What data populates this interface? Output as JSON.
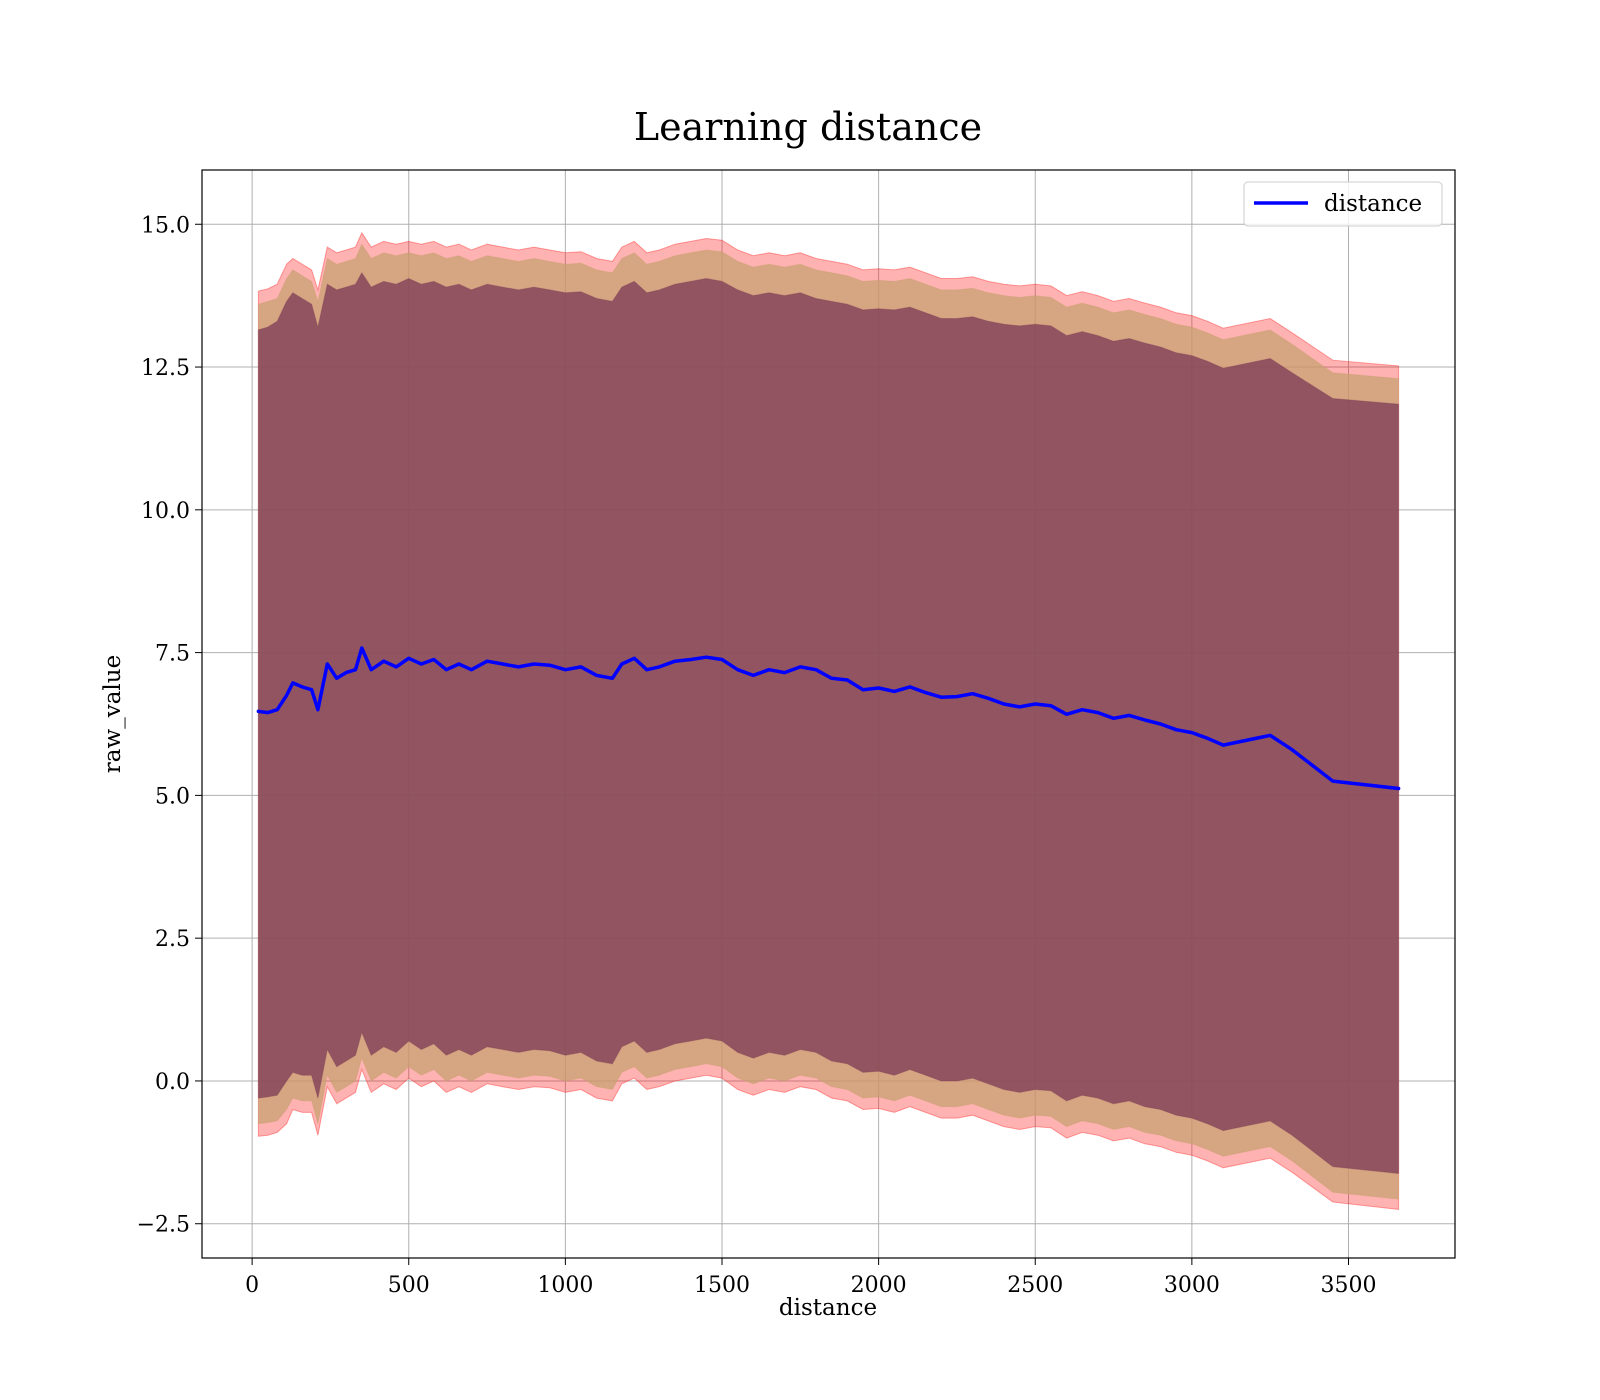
{
  "chart_data": {
    "type": "line",
    "title": "Learning distance",
    "xlabel": "distance",
    "ylabel": "raw_value",
    "xlim": [
      -160,
      3840
    ],
    "ylim": [
      -3.1,
      15.95
    ],
    "x_ticks": [
      0,
      500,
      1000,
      1500,
      2000,
      2500,
      3000,
      3500
    ],
    "x_tick_labels": [
      "0",
      "500",
      "1000",
      "1500",
      "2000",
      "2500",
      "3000",
      "3500"
    ],
    "y_ticks": [
      -2.5,
      0.0,
      2.5,
      5.0,
      7.5,
      10.0,
      12.5,
      15.0
    ],
    "y_tick_labels": [
      "−2.5",
      "0.0",
      "2.5",
      "5.0",
      "7.5",
      "10.0",
      "12.5",
      "15.0"
    ],
    "grid": true,
    "legend": {
      "position": "top-right",
      "entries": [
        "distance"
      ]
    },
    "colors": {
      "line": "#0000ff",
      "band_outer": "#ff0000",
      "band_middle": "#c8a070",
      "band_inner": "#7a3a55",
      "grid": "#b0b0b0"
    },
    "series": [
      {
        "name": "distance",
        "x": [
          20,
          50,
          80,
          110,
          130,
          160,
          190,
          210,
          240,
          270,
          300,
          330,
          350,
          380,
          420,
          460,
          500,
          540,
          580,
          620,
          660,
          700,
          750,
          800,
          850,
          900,
          950,
          1000,
          1050,
          1100,
          1150,
          1180,
          1220,
          1260,
          1300,
          1350,
          1400,
          1450,
          1500,
          1550,
          1600,
          1650,
          1700,
          1750,
          1800,
          1850,
          1900,
          1950,
          2000,
          2050,
          2100,
          2150,
          2200,
          2250,
          2300,
          2350,
          2400,
          2450,
          2500,
          2550,
          2600,
          2650,
          2700,
          2750,
          2800,
          2850,
          2900,
          2950,
          3000,
          3050,
          3100,
          3250,
          3320,
          3450,
          3660
        ],
        "y": [
          6.47,
          6.45,
          6.5,
          6.75,
          6.97,
          6.9,
          6.85,
          6.5,
          7.3,
          7.05,
          7.15,
          7.2,
          7.58,
          7.2,
          7.35,
          7.25,
          7.4,
          7.3,
          7.38,
          7.2,
          7.3,
          7.2,
          7.35,
          7.3,
          7.25,
          7.3,
          7.28,
          7.2,
          7.25,
          7.1,
          7.05,
          7.3,
          7.4,
          7.2,
          7.25,
          7.35,
          7.38,
          7.42,
          7.38,
          7.2,
          7.1,
          7.2,
          7.15,
          7.25,
          7.2,
          7.05,
          7.02,
          6.85,
          6.88,
          6.82,
          6.9,
          6.8,
          6.72,
          6.73,
          6.78,
          6.7,
          6.6,
          6.55,
          6.6,
          6.57,
          6.42,
          6.5,
          6.45,
          6.35,
          6.4,
          6.32,
          6.25,
          6.15,
          6.1,
          6.0,
          5.88,
          6.05,
          5.8,
          5.25,
          5.12
        ]
      }
    ],
    "bands": [
      {
        "kind": "outer",
        "upper": [
          13.83,
          13.87,
          13.95,
          14.3,
          14.4,
          14.3,
          14.2,
          13.85,
          14.6,
          14.5,
          14.55,
          14.6,
          14.85,
          14.6,
          14.7,
          14.65,
          14.7,
          14.65,
          14.7,
          14.6,
          14.65,
          14.55,
          14.65,
          14.6,
          14.55,
          14.6,
          14.55,
          14.5,
          14.52,
          14.4,
          14.35,
          14.6,
          14.7,
          14.5,
          14.55,
          14.65,
          14.7,
          14.75,
          14.72,
          14.55,
          14.45,
          14.5,
          14.45,
          14.5,
          14.4,
          14.35,
          14.3,
          14.2,
          14.22,
          14.2,
          14.25,
          14.15,
          14.05,
          14.05,
          14.08,
          14.0,
          13.95,
          13.92,
          13.95,
          13.92,
          13.75,
          13.82,
          13.75,
          13.65,
          13.7,
          13.62,
          13.55,
          13.45,
          13.4,
          13.3,
          13.18,
          13.35,
          13.1,
          12.62,
          12.52
        ],
        "lower": [
          -0.97,
          -0.95,
          -0.9,
          -0.75,
          -0.5,
          -0.55,
          -0.55,
          -0.95,
          -0.1,
          -0.4,
          -0.3,
          -0.2,
          0.2,
          -0.2,
          -0.05,
          -0.15,
          0.05,
          -0.1,
          0.0,
          -0.2,
          -0.1,
          -0.2,
          -0.05,
          -0.1,
          -0.15,
          -0.1,
          -0.12,
          -0.2,
          -0.15,
          -0.3,
          -0.35,
          -0.05,
          0.05,
          -0.15,
          -0.1,
          0.0,
          0.05,
          0.1,
          0.05,
          -0.15,
          -0.25,
          -0.15,
          -0.2,
          -0.1,
          -0.15,
          -0.3,
          -0.35,
          -0.5,
          -0.48,
          -0.55,
          -0.45,
          -0.55,
          -0.65,
          -0.65,
          -0.6,
          -0.7,
          -0.8,
          -0.85,
          -0.8,
          -0.82,
          -1.0,
          -0.9,
          -0.95,
          -1.05,
          -1.0,
          -1.1,
          -1.15,
          -1.25,
          -1.3,
          -1.4,
          -1.52,
          -1.35,
          -1.6,
          -2.12,
          -2.25
        ]
      },
      {
        "kind": "middle",
        "upper": [
          13.6,
          13.65,
          13.7,
          14.05,
          14.2,
          14.1,
          14.0,
          13.65,
          14.4,
          14.3,
          14.35,
          14.4,
          14.65,
          14.4,
          14.5,
          14.45,
          14.5,
          14.45,
          14.5,
          14.4,
          14.45,
          14.35,
          14.45,
          14.4,
          14.35,
          14.4,
          14.35,
          14.3,
          14.32,
          14.2,
          14.15,
          14.4,
          14.5,
          14.3,
          14.35,
          14.45,
          14.5,
          14.55,
          14.52,
          14.35,
          14.25,
          14.3,
          14.25,
          14.3,
          14.2,
          14.15,
          14.1,
          14.0,
          14.02,
          14.0,
          14.05,
          13.95,
          13.85,
          13.85,
          13.88,
          13.8,
          13.75,
          13.72,
          13.75,
          13.72,
          13.55,
          13.62,
          13.55,
          13.45,
          13.5,
          13.42,
          13.35,
          13.25,
          13.2,
          13.1,
          12.98,
          13.15,
          12.9,
          12.4,
          12.3
        ],
        "lower": [
          -0.75,
          -0.73,
          -0.7,
          -0.5,
          -0.3,
          -0.35,
          -0.35,
          -0.75,
          0.1,
          -0.2,
          -0.1,
          0.0,
          0.4,
          0.0,
          0.15,
          0.05,
          0.25,
          0.1,
          0.2,
          0.0,
          0.1,
          0.0,
          0.15,
          0.1,
          0.05,
          0.1,
          0.08,
          0.0,
          0.05,
          -0.1,
          -0.15,
          0.15,
          0.25,
          0.05,
          0.1,
          0.2,
          0.25,
          0.3,
          0.25,
          0.05,
          -0.05,
          0.05,
          0.0,
          0.1,
          0.05,
          -0.1,
          -0.15,
          -0.3,
          -0.28,
          -0.35,
          -0.25,
          -0.35,
          -0.45,
          -0.45,
          -0.4,
          -0.5,
          -0.6,
          -0.65,
          -0.6,
          -0.62,
          -0.8,
          -0.7,
          -0.75,
          -0.85,
          -0.8,
          -0.9,
          -0.95,
          -1.05,
          -1.1,
          -1.2,
          -1.32,
          -1.15,
          -1.4,
          -1.95,
          -2.07
        ]
      },
      {
        "kind": "inner",
        "upper": [
          13.15,
          13.2,
          13.3,
          13.65,
          13.8,
          13.7,
          13.6,
          13.2,
          13.95,
          13.85,
          13.9,
          13.95,
          14.15,
          13.9,
          14.0,
          13.95,
          14.05,
          13.95,
          14.0,
          13.9,
          13.95,
          13.85,
          13.95,
          13.9,
          13.85,
          13.9,
          13.85,
          13.8,
          13.82,
          13.7,
          13.65,
          13.9,
          14.0,
          13.8,
          13.85,
          13.95,
          14.0,
          14.05,
          14.0,
          13.85,
          13.75,
          13.8,
          13.75,
          13.8,
          13.7,
          13.65,
          13.6,
          13.5,
          13.52,
          13.5,
          13.55,
          13.45,
          13.35,
          13.35,
          13.38,
          13.3,
          13.25,
          13.22,
          13.25,
          13.22,
          13.05,
          13.12,
          13.05,
          12.95,
          13.0,
          12.92,
          12.85,
          12.75,
          12.7,
          12.6,
          12.48,
          12.65,
          12.4,
          11.95,
          11.85
        ],
        "lower": [
          -0.3,
          -0.28,
          -0.25,
          0.0,
          0.15,
          0.1,
          0.1,
          -0.3,
          0.55,
          0.25,
          0.35,
          0.45,
          0.85,
          0.45,
          0.6,
          0.5,
          0.7,
          0.55,
          0.65,
          0.45,
          0.55,
          0.45,
          0.6,
          0.55,
          0.5,
          0.55,
          0.53,
          0.45,
          0.5,
          0.35,
          0.3,
          0.6,
          0.7,
          0.5,
          0.55,
          0.65,
          0.7,
          0.75,
          0.7,
          0.5,
          0.4,
          0.5,
          0.45,
          0.55,
          0.5,
          0.35,
          0.3,
          0.15,
          0.17,
          0.1,
          0.2,
          0.1,
          0.0,
          0.0,
          0.05,
          -0.05,
          -0.15,
          -0.2,
          -0.15,
          -0.17,
          -0.35,
          -0.25,
          -0.3,
          -0.4,
          -0.35,
          -0.45,
          -0.5,
          -0.6,
          -0.65,
          -0.75,
          -0.87,
          -0.7,
          -0.95,
          -1.5,
          -1.62
        ]
      }
    ]
  }
}
